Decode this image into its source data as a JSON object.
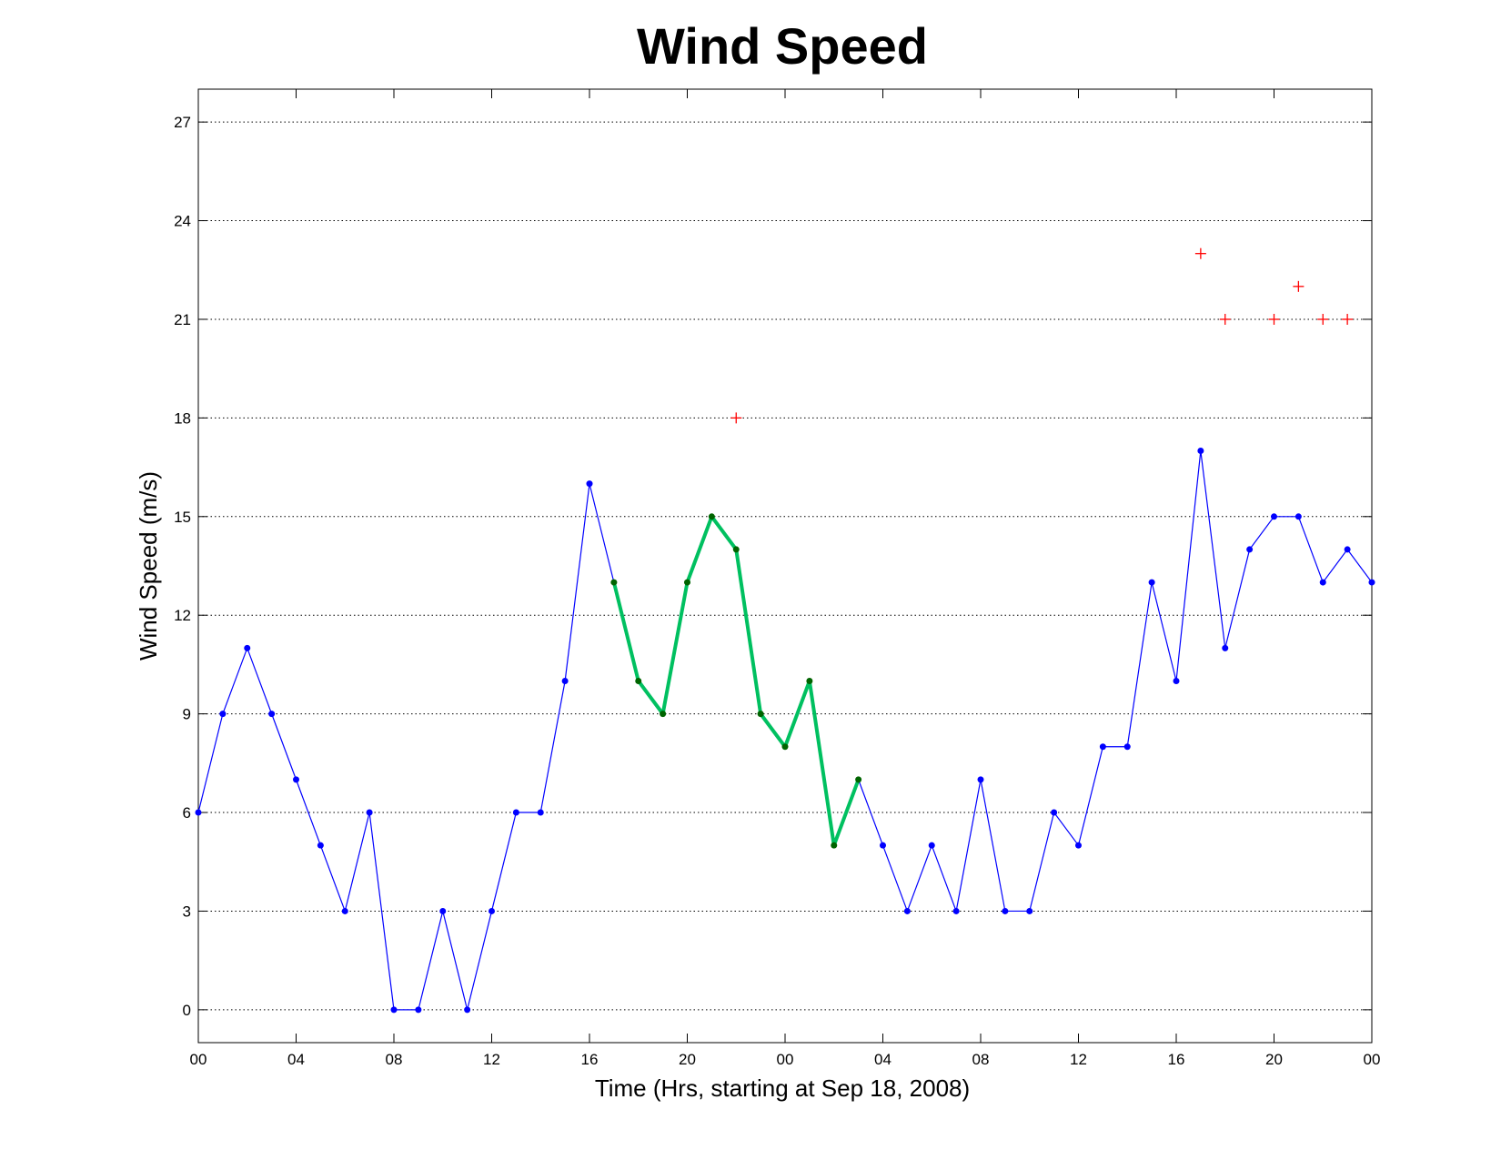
{
  "chart_data": {
    "type": "line",
    "title": "Wind Speed",
    "xlabel": "Time (Hrs, starting at Sep 18, 2008)",
    "ylabel": "Wind Speed (m/s)",
    "ylim": [
      -1,
      28
    ],
    "xlim": [
      0,
      48
    ],
    "grid": "y-dotted",
    "x_tick_values": [
      0,
      4,
      8,
      12,
      16,
      20,
      24,
      28,
      32,
      36,
      40,
      44,
      48
    ],
    "x_tick_labels": [
      "00",
      "04",
      "08",
      "12",
      "16",
      "20",
      "00",
      "04",
      "08",
      "12",
      "16",
      "20",
      "00"
    ],
    "y_tick_values": [
      0,
      3,
      6,
      9,
      12,
      15,
      18,
      21,
      24,
      27
    ],
    "y_tick_labels": [
      "0",
      "3",
      "6",
      "9",
      "12",
      "15",
      "18",
      "21",
      "24",
      "27"
    ],
    "colors": {
      "main": "#0000ff",
      "highlight": "#00c060",
      "highlight_marker": "#006400",
      "gust": "#ff0000"
    },
    "series": [
      {
        "x": [
          0,
          1,
          2,
          3,
          4,
          5,
          6,
          7,
          8,
          9,
          10,
          11,
          12,
          13,
          14,
          15,
          16,
          17,
          18,
          19,
          20,
          21,
          22,
          23,
          24,
          25,
          26,
          27,
          28,
          29,
          30,
          31,
          32,
          33,
          34,
          35,
          36,
          37,
          38,
          39,
          40,
          41,
          42,
          43,
          44,
          45,
          46,
          47,
          48
        ],
        "values": [
          6,
          9,
          11,
          9,
          7,
          5,
          3,
          6,
          0,
          0,
          3,
          0,
          3,
          6,
          6,
          10,
          16,
          13,
          10,
          9,
          13,
          15,
          14,
          9,
          8,
          10,
          5,
          7,
          5,
          3,
          5,
          3,
          7,
          3,
          3,
          6,
          5,
          8,
          8,
          13,
          10,
          17,
          11,
          14,
          15,
          15,
          13,
          14,
          13
        ]
      },
      {
        "x": [
          17,
          18,
          19,
          20,
          21,
          22,
          23,
          24,
          25,
          26,
          27
        ],
        "values": [
          13,
          10,
          9,
          13,
          15,
          14,
          9,
          8,
          10,
          5,
          7
        ]
      },
      {
        "x": [
          22,
          41,
          42,
          44,
          45,
          46,
          47
        ],
        "values": [
          18,
          23,
          21,
          21,
          22,
          21,
          21
        ]
      }
    ]
  }
}
